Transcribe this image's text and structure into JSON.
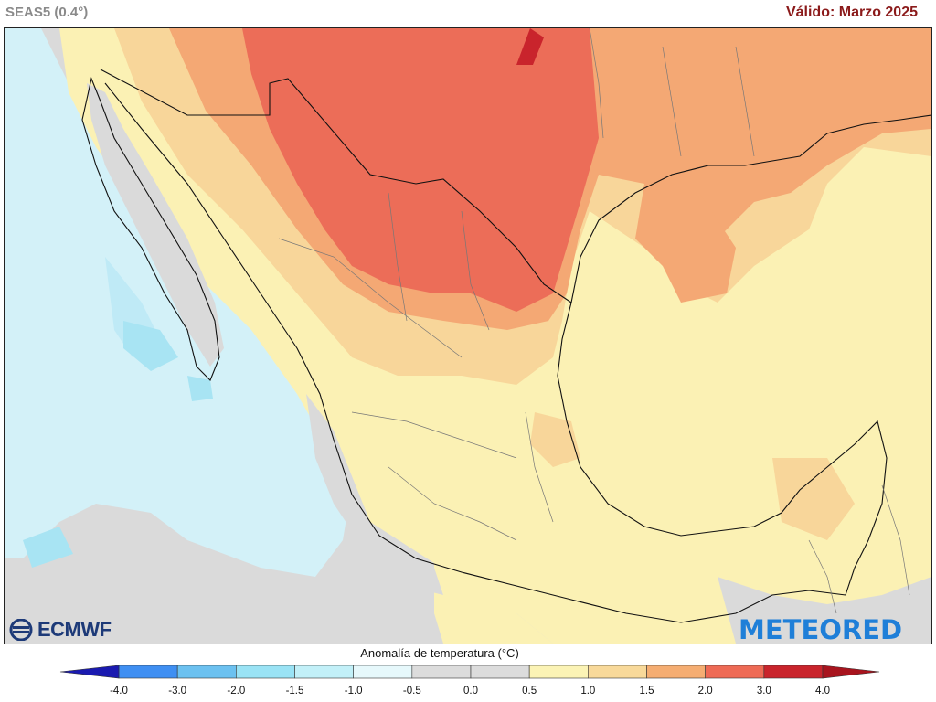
{
  "header": {
    "model": "SEAS5 (0.4°)",
    "valid": "Válido: Marzo 2025"
  },
  "map": {
    "region": "Mexico",
    "variable": "Anomalía de temperatura (°C)"
  },
  "logos": {
    "left": "ECMWF",
    "right": "METEORED"
  },
  "legend": {
    "title": "Anomalía de temperatura (°C)",
    "ticks": [
      "-4.0",
      "-3.0",
      "-2.0",
      "-1.5",
      "-1.0",
      "-0.5",
      "0.0",
      "0.5",
      "1.0",
      "1.5",
      "2.0",
      "3.0",
      "4.0"
    ],
    "colors": [
      "#1f3ee0",
      "#3f8ff2",
      "#6cc1f0",
      "#9ae3f5",
      "#c2f0f8",
      "#e6f8fb",
      "#dcdcdc",
      "#dcdcdc",
      "#fbf3b5",
      "#f8d99a",
      "#f5ad72",
      "#ee6a55",
      "#c9242c"
    ],
    "low_arrow_color": "#1a1ab0",
    "high_arrow_color": "#a8141e"
  },
  "colors": {
    "land_land_neutral": "#dadada",
    "ocean_cold": "#d5f3fa",
    "warm_light": "#fbf1b4",
    "warm_mid": "#f8d69a",
    "warm_orange": "#f4a874",
    "hot": "#ec6d58",
    "border": "#111111",
    "state_border": "#888888"
  }
}
